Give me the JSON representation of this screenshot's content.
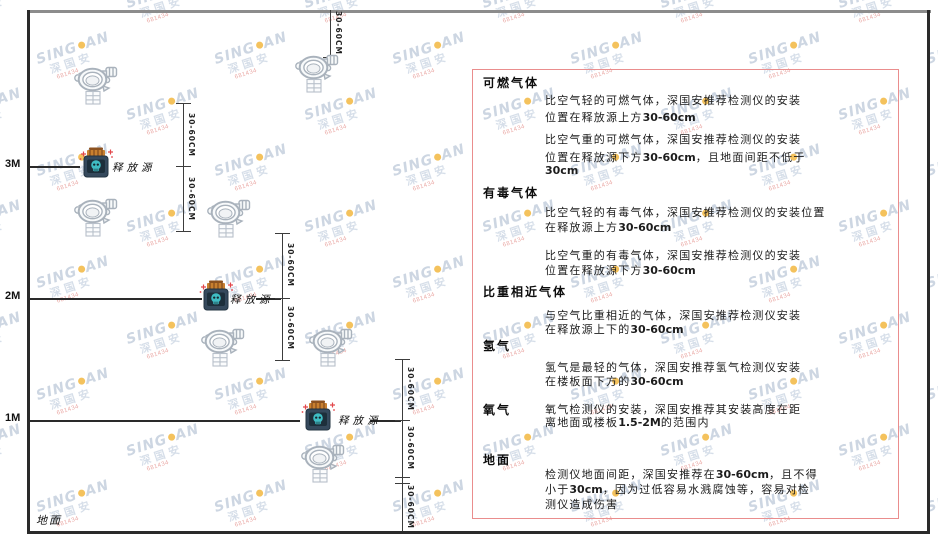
{
  "watermark": {
    "brand_left": "SING",
    "brand_right": "AN",
    "brand_cn": "深国安",
    "code": "681434"
  },
  "diagram": {
    "ground_label": "地面",
    "source_label": "释放源",
    "dimension_label": "30-60CM",
    "levels": [
      {
        "label": "3M"
      },
      {
        "label": "2M"
      },
      {
        "label": "1M"
      }
    ],
    "detector_icon_name": "gas-detector-icon",
    "source_icon_name": "release-source-icon"
  },
  "panel": {
    "border_color": "#ea8d8d",
    "sections": [
      {
        "heading": "可燃气体",
        "paragraphs": [
          [
            "比空气轻的可燃气体，深国安推荐检测仪的安装",
            "位置在释放源上方30-60cm"
          ],
          [
            "比空气重的可燃气体，深国安推荐检测仪的安装",
            "位置在释放源下方30-60cm，且地面间距不低于",
            "30cm"
          ]
        ]
      },
      {
        "heading": "有毒气体",
        "paragraphs": [
          [
            "比空气轻的有毒气体，深国安推荐检测仪的安装位置",
            "在释放源上方30-60cm"
          ],
          [
            "比空气重的有毒气体，深国安推荐检测仪的安装",
            "位置在释放源下方30-60cm"
          ]
        ]
      },
      {
        "heading": "比重相近气体",
        "paragraphs": [
          [
            "与空气比重相近的气体，深国安推荐检测仪安装",
            "在释放源上下的30-60cm"
          ]
        ]
      },
      {
        "heading": "氢气",
        "paragraphs": [
          [
            "氢气是最轻的气体，深国安推荐氢气检测仪安装",
            "在楼板面下方的30-60cm"
          ]
        ]
      },
      {
        "heading": "氧气",
        "paragraphs": [
          [
            "氧气检测仪的安装，深国安推荐其安装高度在距",
            "离地面或楼板1.5-2M的范围内"
          ]
        ]
      },
      {
        "heading": "地面",
        "paragraphs": [
          [
            "检测仪地面间距，深国安推荐在30-60cm，且不得",
            "小于30cm，因为过低容易水溅腐蚀等，容易对检",
            "测仪造成伤害"
          ]
        ]
      }
    ]
  }
}
